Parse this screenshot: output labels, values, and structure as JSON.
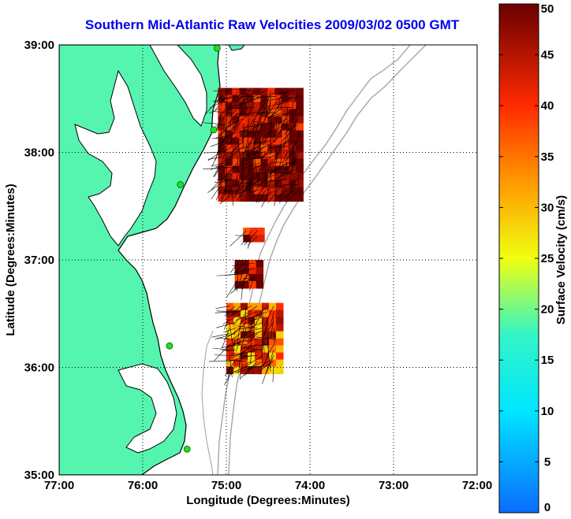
{
  "title": "Southern Mid-Atlantic Raw Velocities 2009/03/02 0500 GMT",
  "x_axis": {
    "label": "Longitude (Degrees:Minutes)",
    "ticks": [
      "77:00",
      "76:00",
      "75:00",
      "74:00",
      "73:00",
      "72:00"
    ],
    "range": [
      -77,
      -72
    ]
  },
  "y_axis": {
    "label": "Latitude (Degrees:Minutes)",
    "ticks": [
      "39:00",
      "38:00",
      "37:00",
      "36:00",
      "35:00"
    ],
    "range": [
      35,
      39
    ]
  },
  "colorbar": {
    "label": "Surface Velocity (cm/s)",
    "ticks": [
      "0",
      "5",
      "10",
      "15",
      "20",
      "25",
      "30",
      "35",
      "40",
      "45",
      "50"
    ],
    "range": [
      0,
      50
    ]
  },
  "colors": {
    "land": "#55f5b0",
    "coast_line": "#000000",
    "bathymetry": "#a0a0a0",
    "station": "#22dd22",
    "title": "#0000ee"
  },
  "stations": [
    {
      "lon": -75.11,
      "lat": 38.97
    },
    {
      "lon": -75.15,
      "lat": 38.21
    },
    {
      "lon": -75.55,
      "lat": 37.7
    },
    {
      "lon": -75.68,
      "lat": 36.2
    },
    {
      "lon": -75.47,
      "lat": 35.24
    }
  ],
  "velocity_regions": [
    {
      "lon_min": -75.1,
      "lon_max": -74.1,
      "lat_min": 37.6,
      "lat_max": 38.6,
      "speed": 48
    },
    {
      "lon_min": -74.8,
      "lon_max": -74.6,
      "lat_min": 37.2,
      "lat_max": 37.3,
      "speed": 46
    },
    {
      "lon_min": -74.9,
      "lon_max": -74.6,
      "lat_min": 36.8,
      "lat_max": 37.0,
      "speed": 47
    },
    {
      "lon_min": -75.0,
      "lon_max": -74.4,
      "lat_min": 36.0,
      "lat_max": 36.6,
      "speed": 38
    }
  ]
}
